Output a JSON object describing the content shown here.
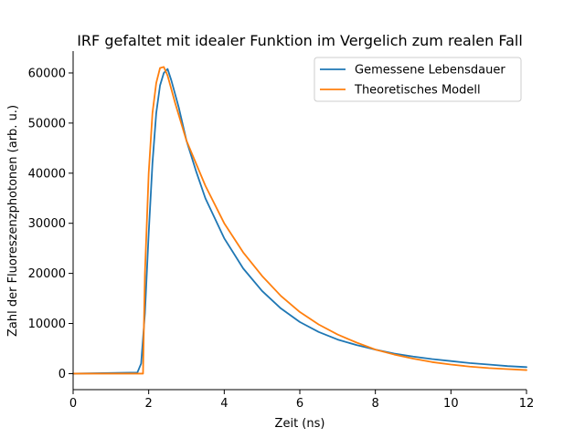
{
  "chart_data": {
    "type": "line",
    "title": "IRF gefaltet mit idealer Funktion im Vergelich zum realen Fall",
    "xlabel": "Zeit (ns)",
    "ylabel": "Zahl der Fluoreszenzphotonen (arb. u.)",
    "xlim": [
      0,
      12
    ],
    "ylim": [
      -3200,
      64000
    ],
    "xticks": [
      0,
      2,
      4,
      6,
      8,
      10,
      12
    ],
    "yticks": [
      0,
      10000,
      20000,
      30000,
      40000,
      50000,
      60000
    ],
    "grid": false,
    "legend_position": "top-right",
    "series": [
      {
        "name": "Gemessene Lebensdauer",
        "color": "#1f77b4",
        "x": [
          0,
          1.7,
          1.8,
          1.9,
          2.0,
          2.1,
          2.2,
          2.3,
          2.4,
          2.5,
          2.6,
          2.8,
          3.0,
          3.25,
          3.5,
          4.0,
          4.5,
          5.0,
          5.5,
          6.0,
          6.5,
          7.0,
          7.5,
          8.0,
          8.5,
          9.0,
          9.5,
          10.0,
          10.5,
          11.0,
          11.5,
          12.0
        ],
        "y": [
          0,
          200,
          2000,
          12000,
          28000,
          42000,
          52000,
          57500,
          60000,
          60800,
          58500,
          53000,
          46500,
          40500,
          35000,
          27000,
          21000,
          16500,
          13000,
          10300,
          8300,
          6800,
          5700,
          4800,
          4000,
          3400,
          2900,
          2500,
          2100,
          1800,
          1500,
          1300
        ]
      },
      {
        "name": "Theoretisches Modell",
        "color": "#ff7f0e",
        "x": [
          0,
          1.85,
          1.9,
          2.0,
          2.1,
          2.2,
          2.3,
          2.4,
          2.5,
          2.7,
          3.0,
          3.5,
          4.0,
          4.5,
          5.0,
          5.5,
          6.0,
          6.5,
          7.0,
          7.5,
          8.0,
          8.5,
          9.0,
          9.5,
          10.0,
          10.5,
          11.0,
          11.5,
          12.0
        ],
        "y": [
          0,
          0,
          20000,
          40000,
          52000,
          58000,
          61000,
          61200,
          59500,
          54000,
          46500,
          37500,
          30000,
          24200,
          19500,
          15500,
          12300,
          9800,
          7800,
          6200,
          4800,
          3800,
          3000,
          2300,
          1800,
          1400,
          1100,
          900,
          700
        ]
      }
    ]
  }
}
